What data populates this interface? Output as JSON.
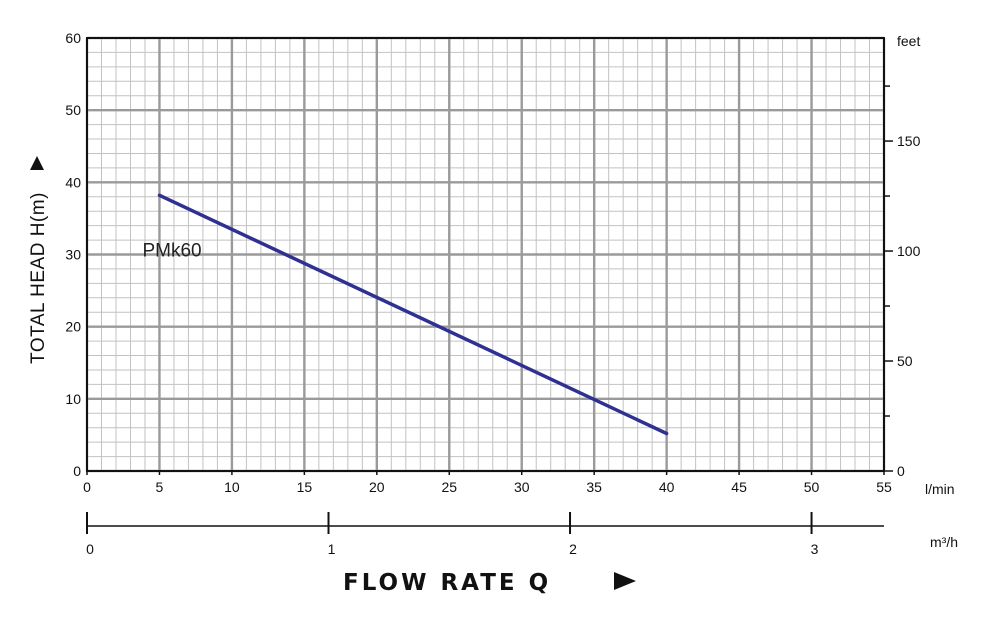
{
  "chart_data": {
    "type": "line",
    "ylabel": "TOTAL HEAD H(m)",
    "xlabel": "FLOW  RATE Q",
    "x_unit": "l/min",
    "x2_unit": "m³/h",
    "y2_unit": "feet",
    "xlim": [
      0,
      55
    ],
    "ylim": [
      0,
      60
    ],
    "x_ticks": [
      0,
      5,
      10,
      15,
      20,
      25,
      30,
      35,
      40,
      45,
      50,
      55
    ],
    "y_ticks": [
      0,
      10,
      20,
      30,
      40,
      50,
      60
    ],
    "y2_ticks": [
      0,
      50,
      100,
      150
    ],
    "x2_ticks": [
      0,
      1,
      2,
      3
    ],
    "grid": true,
    "series": [
      {
        "name": "PMk60",
        "color": "#2e3192",
        "x": [
          5,
          40
        ],
        "y": [
          38.2,
          5.2
        ]
      }
    ]
  }
}
